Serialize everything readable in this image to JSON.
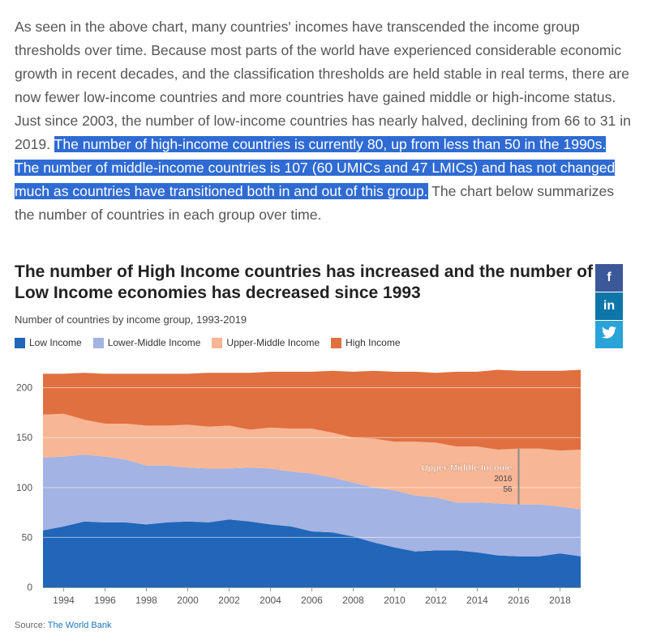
{
  "intro": {
    "text_before": "As seen in the above chart, many countries' incomes have transcended the income group thresholds over time. Because most parts of the world have experienced considerable economic growth in recent decades, and the classification thresholds are held stable in real terms, there are now fewer low-income countries and more countries have gained middle or high-income status. Just since 2003, the number of low-income countries has nearly halved, declining from 66 to 31 in 2019. ",
    "text_highlighted": "The number of high-income countries is currently 80, up from less than 50 in the 1990s. The number of middle-income countries is 107 (60 UMICs and 47 LMICs) and has not changed much as countries have transitioned both in and out of this group.",
    "text_after": " The chart below summarizes the number of countries in each group over time."
  },
  "share": {
    "facebook": "f",
    "linkedin": "in",
    "twitter": "🐦",
    "colors": {
      "facebook": "#3b5998",
      "linkedin": "#0e76a8",
      "twitter": "#2aa3d8"
    }
  },
  "source": {
    "label": "Source:",
    "link_text": "The World Bank"
  },
  "chart_data": {
    "type": "area",
    "stacked": true,
    "title": "The number of High Income countries has increased and the number of Low Income economies has decreased since 1993",
    "subtitle": "Number of countries by income group, 1993-2019",
    "legend_position": "top-left",
    "grid": true,
    "x": [
      1993,
      1994,
      1995,
      1996,
      1997,
      1998,
      1999,
      2000,
      2001,
      2002,
      2003,
      2004,
      2005,
      2006,
      2007,
      2008,
      2009,
      2010,
      2011,
      2012,
      2013,
      2014,
      2015,
      2016,
      2017,
      2018,
      2019
    ],
    "x_ticks": [
      1994,
      1996,
      1998,
      2000,
      2002,
      2004,
      2006,
      2008,
      2010,
      2012,
      2014,
      2016,
      2018
    ],
    "ylim": [
      0,
      220
    ],
    "y_ticks": [
      0,
      50,
      100,
      150,
      200
    ],
    "series": [
      {
        "name": "Low Income",
        "color": "#2166b8",
        "values": [
          57,
          61,
          66,
          65,
          65,
          63,
          65,
          66,
          65,
          68,
          66,
          63,
          61,
          56,
          55,
          51,
          45,
          40,
          36,
          37,
          37,
          35,
          32,
          31,
          31,
          34,
          31
        ]
      },
      {
        "name": "Lower-Middle Income",
        "color": "#a3b3e3",
        "values": [
          73,
          70,
          67,
          66,
          63,
          59,
          57,
          54,
          54,
          51,
          54,
          56,
          55,
          58,
          55,
          54,
          55,
          57,
          56,
          53,
          48,
          50,
          52,
          52,
          52,
          47,
          47
        ]
      },
      {
        "name": "Upper-Middle Income",
        "color": "#f7b695",
        "values": [
          43,
          43,
          35,
          33,
          36,
          40,
          40,
          43,
          42,
          43,
          38,
          41,
          43,
          45,
          45,
          45,
          49,
          49,
          54,
          55,
          56,
          56,
          54,
          56,
          56,
          56,
          60
        ]
      },
      {
        "name": "High Income",
        "color": "#e07040",
        "values": [
          41,
          40,
          47,
          50,
          50,
          52,
          52,
          51,
          54,
          53,
          57,
          56,
          57,
          57,
          62,
          66,
          68,
          70,
          70,
          70,
          75,
          75,
          80,
          78,
          78,
          80,
          80
        ]
      }
    ],
    "annotation": {
      "series": "Upper-Middle Income",
      "x_label": "2016",
      "value": "56",
      "x": 2016
    }
  }
}
